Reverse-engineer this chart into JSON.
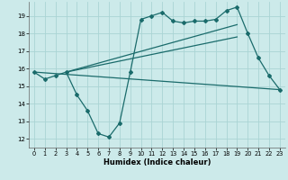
{
  "xlabel": "Humidex (Indice chaleur)",
  "background_color": "#cceaea",
  "grid_color": "#aad4d4",
  "line_color": "#1a6b6b",
  "xlim": [
    -0.5,
    23.5
  ],
  "ylim": [
    11.5,
    19.8
  ],
  "yticks": [
    12,
    13,
    14,
    15,
    16,
    17,
    18,
    19
  ],
  "xticks": [
    0,
    1,
    2,
    3,
    4,
    5,
    6,
    7,
    8,
    9,
    10,
    11,
    12,
    13,
    14,
    15,
    16,
    17,
    18,
    19,
    20,
    21,
    22,
    23
  ],
  "series_main": {
    "x": [
      0,
      1,
      2,
      3,
      4,
      5,
      6,
      7,
      8,
      9,
      10,
      11,
      12,
      13,
      14,
      15,
      16,
      17,
      18,
      19,
      20,
      21,
      22,
      23
    ],
    "y": [
      15.8,
      15.4,
      15.6,
      15.8,
      14.5,
      13.6,
      12.3,
      12.1,
      12.9,
      15.8,
      18.8,
      19.0,
      19.2,
      18.7,
      18.6,
      18.7,
      18.7,
      18.8,
      19.3,
      19.5,
      18.0,
      16.6,
      15.6,
      14.8
    ]
  },
  "series_straight": [
    {
      "x": [
        0,
        23
      ],
      "y": [
        15.8,
        14.8
      ]
    },
    {
      "x": [
        3,
        19
      ],
      "y": [
        15.8,
        18.5
      ]
    },
    {
      "x": [
        3,
        19
      ],
      "y": [
        15.8,
        17.8
      ]
    }
  ]
}
